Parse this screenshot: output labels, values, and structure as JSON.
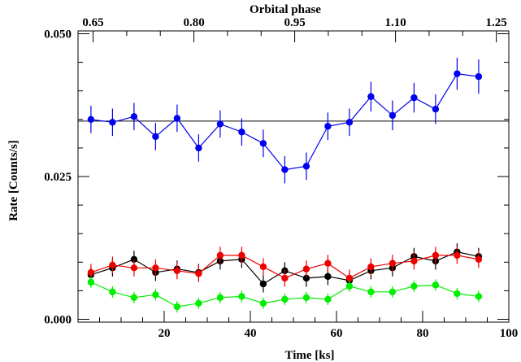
{
  "chart_data": {
    "type": "scatter",
    "xlabel": "Time [ks]",
    "ylabel": "Rate [Counts/s]",
    "top_xlabel": "Orbital phase",
    "xlim": [
      0,
      100
    ],
    "ylim": [
      -0.0005,
      0.0505
    ],
    "x_ticks": [
      20,
      40,
      60,
      80,
      100
    ],
    "x_tick_labels": [
      "20",
      "40",
      "60",
      "80",
      "100"
    ],
    "y_ticks": [
      0.0,
      0.025,
      0.05
    ],
    "y_tick_labels": [
      "0.000",
      "0.025",
      "0.050"
    ],
    "top_ticks": [
      {
        "x": 3.5,
        "label": "0.65"
      },
      {
        "x": 26.9,
        "label": "0.80"
      },
      {
        "x": 50.3,
        "label": "0.95"
      },
      {
        "x": 73.7,
        "label": "1.10"
      },
      {
        "x": 97.1,
        "label": "1.25"
      }
    ],
    "reference_line": 0.0347,
    "x": [
      3,
      8,
      13,
      18,
      23,
      28,
      33,
      38,
      43,
      48,
      53,
      58,
      63,
      68,
      73,
      78,
      83,
      88,
      93
    ],
    "series": [
      {
        "color": "#0000ee",
        "values": [
          0.035,
          0.0345,
          0.0355,
          0.032,
          0.0352,
          0.03,
          0.0342,
          0.0328,
          0.0308,
          0.0262,
          0.0268,
          0.0338,
          0.0345,
          0.039,
          0.0357,
          0.0388,
          0.0368,
          0.043,
          0.0425
        ],
        "errors": [
          0.0024,
          0.0024,
          0.0024,
          0.0024,
          0.0024,
          0.0024,
          0.0024,
          0.0024,
          0.0024,
          0.0024,
          0.0024,
          0.0024,
          0.0024,
          0.0026,
          0.0026,
          0.0026,
          0.0026,
          0.0028,
          0.003
        ]
      },
      {
        "color": "#000000",
        "values": [
          0.0078,
          0.009,
          0.0105,
          0.0082,
          0.0088,
          0.0082,
          0.0102,
          0.0105,
          0.0062,
          0.0085,
          0.0072,
          0.0075,
          0.0068,
          0.0085,
          0.009,
          0.011,
          0.0102,
          0.0118,
          0.011
        ],
        "errors": [
          0.0015,
          0.0015,
          0.0015,
          0.0015,
          0.0015,
          0.0015,
          0.0015,
          0.0015,
          0.0015,
          0.0015,
          0.0015,
          0.0015,
          0.0015,
          0.0015,
          0.0015,
          0.0015,
          0.0015,
          0.0015,
          0.0015
        ]
      },
      {
        "color": "#ee0000",
        "values": [
          0.0082,
          0.0095,
          0.009,
          0.009,
          0.0085,
          0.008,
          0.0112,
          0.0112,
          0.0092,
          0.0072,
          0.0088,
          0.0098,
          0.0072,
          0.0092,
          0.0098,
          0.0102,
          0.0112,
          0.0112,
          0.0105
        ],
        "errors": [
          0.0015,
          0.0015,
          0.0015,
          0.0015,
          0.0015,
          0.0015,
          0.0015,
          0.0015,
          0.0015,
          0.0015,
          0.0015,
          0.0015,
          0.0015,
          0.0015,
          0.0015,
          0.0015,
          0.0015,
          0.0015,
          0.0015
        ]
      },
      {
        "color": "#00ee00",
        "values": [
          0.0065,
          0.0048,
          0.0038,
          0.0043,
          0.0022,
          0.0028,
          0.0038,
          0.004,
          0.0028,
          0.0035,
          0.0038,
          0.0035,
          0.0058,
          0.0048,
          0.0048,
          0.0058,
          0.006,
          0.0045,
          0.004
        ],
        "errors": [
          0.001,
          0.001,
          0.001,
          0.001,
          0.001,
          0.001,
          0.001,
          0.001,
          0.001,
          0.001,
          0.001,
          0.001,
          0.001,
          0.001,
          0.001,
          0.001,
          0.001,
          0.001,
          0.001
        ]
      }
    ]
  }
}
